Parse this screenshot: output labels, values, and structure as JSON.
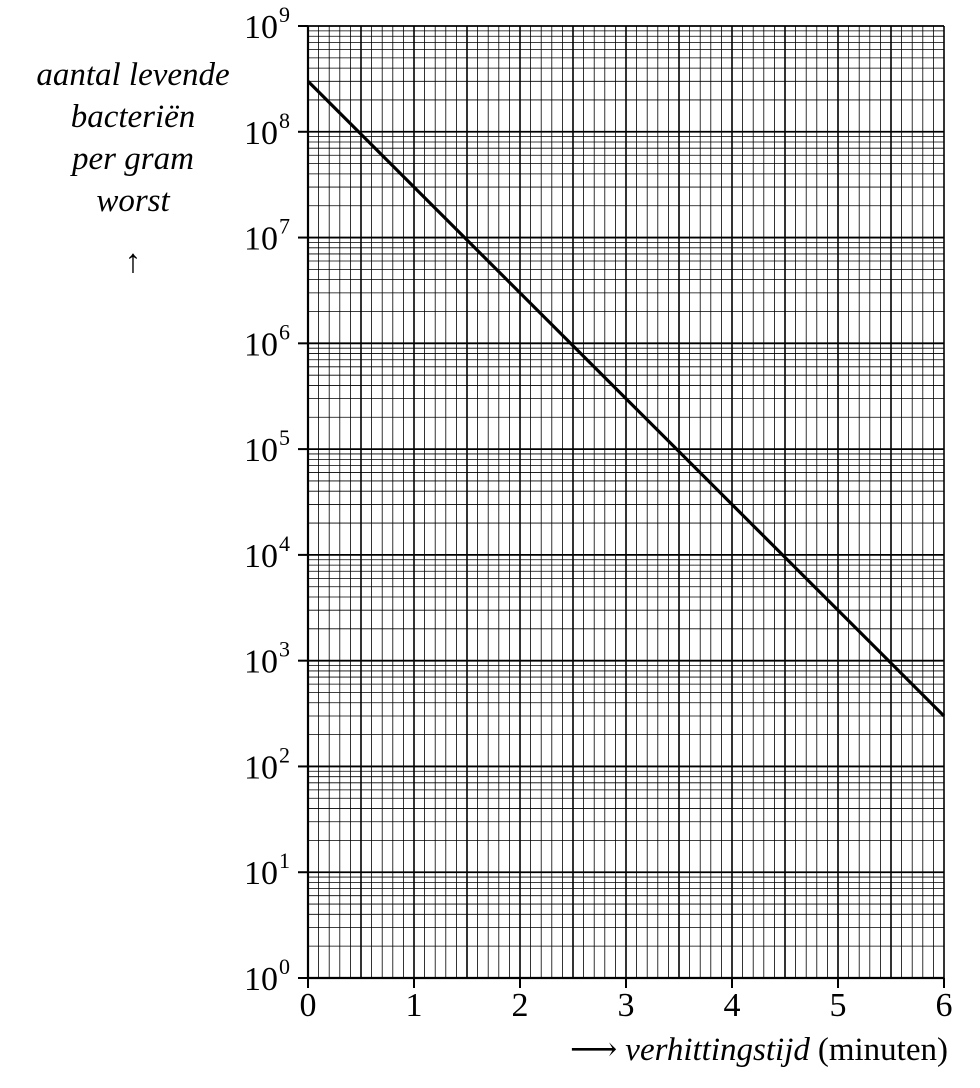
{
  "chart_data": {
    "type": "line",
    "y_scale": "log",
    "x": [
      0,
      6
    ],
    "series": [
      {
        "values": [
          300000000,
          300
        ]
      }
    ],
    "xlim": [
      0,
      6
    ],
    "ylim": [
      1,
      1000000000
    ],
    "x_ticks": [
      "0",
      "1",
      "2",
      "3",
      "4",
      "5",
      "6"
    ],
    "y_ticks": [
      {
        "base": "10",
        "exp": "0"
      },
      {
        "base": "10",
        "exp": "1"
      },
      {
        "base": "10",
        "exp": "2"
      },
      {
        "base": "10",
        "exp": "3"
      },
      {
        "base": "10",
        "exp": "4"
      },
      {
        "base": "10",
        "exp": "5"
      },
      {
        "base": "10",
        "exp": "6"
      },
      {
        "base": "10",
        "exp": "7"
      },
      {
        "base": "10",
        "exp": "8"
      },
      {
        "base": "10",
        "exp": "9"
      }
    ],
    "ylabel_lines": [
      "aantal levende",
      "bacteriën",
      "per gram",
      "worst"
    ],
    "ylabel_arrow": "↑",
    "xlabel_arrow": "⟶",
    "xlabel_italic": "verhittingstijd",
    "xlabel_unit": "(minuten)",
    "grid": true,
    "colors": {
      "line": "#000000",
      "grid": "#000000"
    }
  }
}
